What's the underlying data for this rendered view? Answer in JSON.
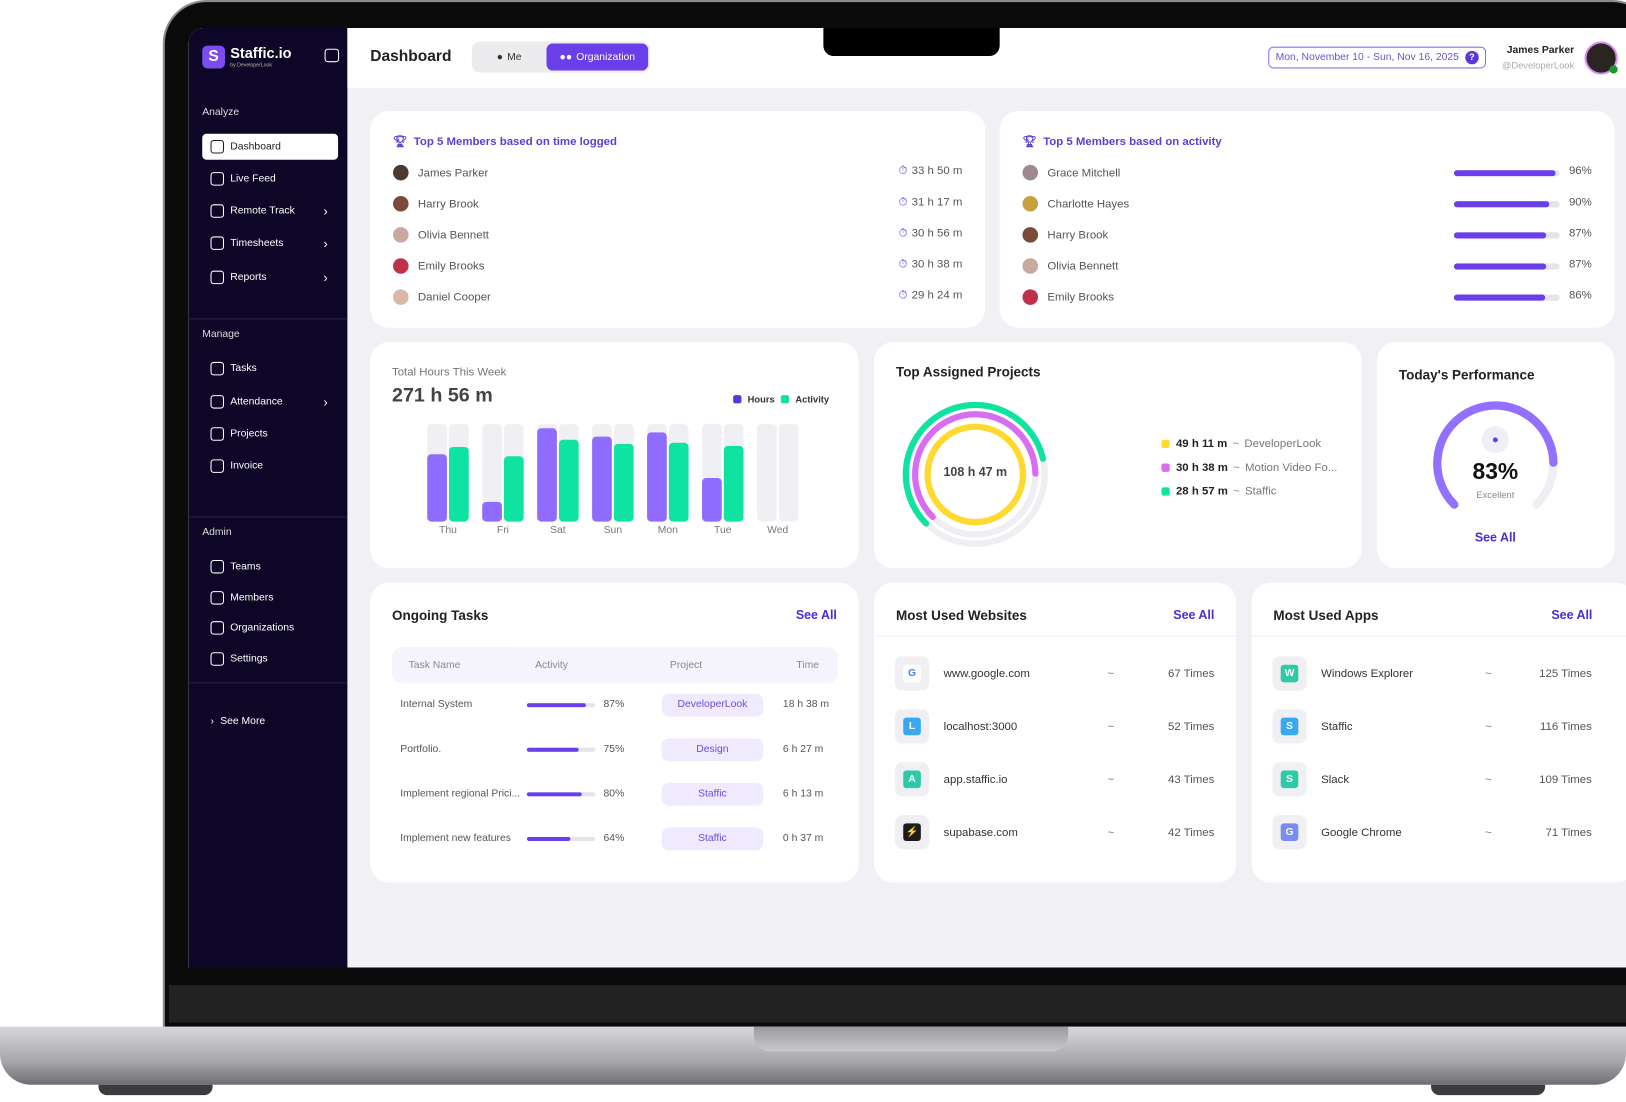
{
  "app": {
    "name": "Staffic.io",
    "byline": "by DeveloperLook",
    "logo_letter": "S"
  },
  "sidebar": {
    "sections": [
      {
        "title": "Analyze",
        "items": [
          {
            "label": "Dashboard",
            "active": true
          },
          {
            "label": "Live Feed"
          },
          {
            "label": "Remote Track",
            "chevron": true
          },
          {
            "label": "Timesheets",
            "chevron": true
          },
          {
            "label": "Reports",
            "chevron": true
          }
        ]
      },
      {
        "title": "Manage",
        "items": [
          {
            "label": "Tasks"
          },
          {
            "label": "Attendance",
            "chevron": true
          },
          {
            "label": "Projects"
          },
          {
            "label": "Invoice"
          }
        ]
      },
      {
        "title": "Admin",
        "items": [
          {
            "label": "Teams"
          },
          {
            "label": "Members"
          },
          {
            "label": "Organizations"
          },
          {
            "label": "Settings"
          }
        ]
      }
    ],
    "see_more": "See More"
  },
  "header": {
    "title": "Dashboard",
    "toggle": {
      "me": "Me",
      "org": "Organization",
      "selected": "Organization"
    },
    "date_range": "Mon, November 10 - Sun, Nov 16, 2025",
    "help": "?",
    "user": {
      "name": "James Parker",
      "handle": "@DeveloperLook",
      "status": "online"
    }
  },
  "colors": {
    "accent": "#6a3ee8",
    "hours": "#8f6bff",
    "activity": "#0fe3a2",
    "yellow": "#ffd92e",
    "purple": "#d96df2",
    "green": "#0fe3a2",
    "sidebar": "#0d0626"
  },
  "time_logged": {
    "title": "Top 5 Members based on time logged",
    "members": [
      {
        "name": "James Parker",
        "time": "33 h 50 m",
        "color": "#4a3a30"
      },
      {
        "name": "Harry Brook",
        "time": "31 h 17 m",
        "color": "#7a4a3a"
      },
      {
        "name": "Olivia Bennett",
        "time": "30 h 56 m",
        "color": "#c9a8a0"
      },
      {
        "name": "Emily Brooks",
        "time": "30 h 38 m",
        "color": "#c0304a"
      },
      {
        "name": "Daniel Cooper",
        "time": "29 h 24 m",
        "color": "#d9b8a8"
      }
    ]
  },
  "activity": {
    "title": "Top 5 Members based on activity",
    "members": [
      {
        "name": "Grace Mitchell",
        "percent": 96,
        "label": "96%",
        "color": "#a08890"
      },
      {
        "name": "Charlotte Hayes",
        "percent": 90,
        "label": "90%",
        "color": "#c8a040"
      },
      {
        "name": "Harry Brook",
        "percent": 87,
        "label": "87%",
        "color": "#7a4a3a"
      },
      {
        "name": "Olivia Bennett",
        "percent": 87,
        "label": "87%",
        "color": "#c9a8a0"
      },
      {
        "name": "Emily Brooks",
        "percent": 86,
        "label": "86%",
        "color": "#c0304a"
      }
    ]
  },
  "weekly": {
    "label": "Total Hours This Week",
    "total": "271 h 56 m",
    "legend": [
      "Hours",
      "Activity"
    ]
  },
  "chart_data": {
    "type": "bar",
    "categories": [
      "Thu",
      "Fri",
      "Sat",
      "Sun",
      "Mon",
      "Tue",
      "Wed"
    ],
    "series": [
      {
        "name": "Hours",
        "values": [
          69,
          20,
          96,
          87,
          92,
          45,
          0
        ]
      },
      {
        "name": "Activity",
        "values": [
          77,
          67,
          84,
          80,
          81,
          78,
          0
        ]
      }
    ],
    "ylim": [
      0,
      100
    ],
    "grid": false,
    "legend": "top-right"
  },
  "projects": {
    "title": "Top Assigned Projects",
    "total": "108 h 47 m",
    "items": [
      {
        "time": "49 h 11 m",
        "name": "DeveloperLook",
        "color": "#ffd92e",
        "hours": 49.18
      },
      {
        "time": "30 h 38 m",
        "name": "Motion Video Fo...",
        "color": "#d96df2",
        "hours": 30.63
      },
      {
        "time": "28 h 57 m",
        "name": "Staffic",
        "color": "#0fe3a2",
        "hours": 28.95
      }
    ],
    "sep": "~"
  },
  "performance": {
    "title": "Today's Performance",
    "value": 83,
    "label": "83%",
    "rating": "Excellent",
    "see_all": "See All"
  },
  "tasks": {
    "title": "Ongoing Tasks",
    "see_all": "See All",
    "columns": [
      "Task Name",
      "Activity",
      "Project",
      "Time"
    ],
    "rows": [
      {
        "name": "Internal System",
        "activity": 87,
        "activity_label": "87%",
        "project": "DeveloperLook",
        "time": "18 h 38 m"
      },
      {
        "name": "Portfolio.",
        "activity": 75,
        "activity_label": "75%",
        "project": "Design",
        "time": "6 h 27 m"
      },
      {
        "name": "Implement regional Prici...",
        "activity": 80,
        "activity_label": "80%",
        "project": "Staffic",
        "time": "6 h 13 m"
      },
      {
        "name": "Implement new features",
        "activity": 64,
        "activity_label": "64%",
        "project": "Staffic",
        "time": "0 h 37 m"
      }
    ]
  },
  "websites": {
    "title": "Most Used Websites",
    "see_all": "See All",
    "items": [
      {
        "name": "www.google.com",
        "count": "67 Times",
        "icon": "G",
        "color": "#ffffff"
      },
      {
        "name": "localhost:3000",
        "count": "52 Times",
        "icon": "L",
        "color": "#3aa8f0"
      },
      {
        "name": "app.staffic.io",
        "count": "43 Times",
        "icon": "A",
        "color": "#2ec9a8"
      },
      {
        "name": "supabase.com",
        "count": "42 Times",
        "icon": "⚡",
        "color": "#1c1c1c"
      }
    ]
  },
  "apps": {
    "title": "Most Used Apps",
    "see_all": "See All",
    "items": [
      {
        "name": "Windows Explorer",
        "count": "125 Times",
        "icon": "W",
        "color": "#2ec9a8"
      },
      {
        "name": "Staffic",
        "count": "116 Times",
        "icon": "S",
        "color": "#3aa8f0"
      },
      {
        "name": "Slack",
        "count": "109 Times",
        "icon": "S",
        "color": "#2ec9a8"
      },
      {
        "name": "Google Chrome",
        "count": "71 Times",
        "icon": "G",
        "color": "#7b8cf0"
      }
    ]
  }
}
